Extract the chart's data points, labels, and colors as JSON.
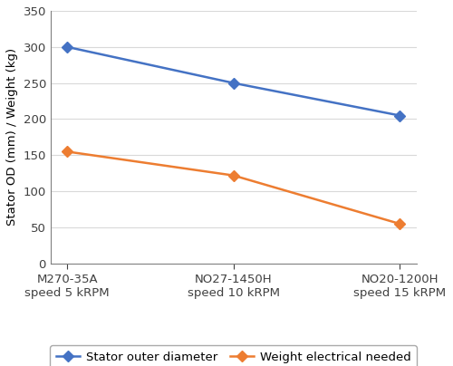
{
  "categories": [
    "M270-35A\nspeed 5 kRPM",
    "NO27-1450H\nspeed 10 kRPM",
    "NO20-1200H\nspeed 15 kRPM"
  ],
  "series": [
    {
      "label": "Stator outer diameter",
      "values": [
        300,
        250,
        205
      ],
      "color": "#4472C4",
      "marker": "D",
      "markersize": 6
    },
    {
      "label": "Weight electrical needed",
      "values": [
        155,
        122,
        55
      ],
      "color": "#ED7D31",
      "marker": "D",
      "markersize": 6
    }
  ],
  "ylabel": "Stator OD (mm) / Weight (kg)",
  "ylim": [
    0,
    350
  ],
  "yticks": [
    0,
    50,
    100,
    150,
    200,
    250,
    300,
    350
  ],
  "grid_color": "#D9D9D9",
  "background_color": "#FFFFFF",
  "tick_label_fontsize": 9.5,
  "axis_label_fontsize": 9.5,
  "legend_fontsize": 9.5,
  "linewidth": 1.8,
  "spine_color": "#808080"
}
